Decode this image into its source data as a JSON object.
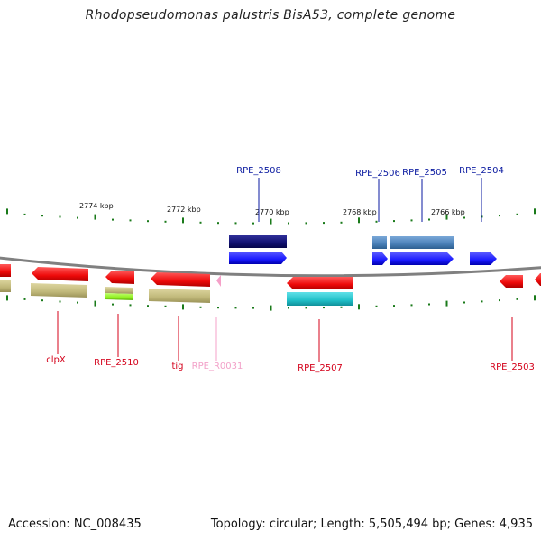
{
  "title": "Rhodopseudomonas palustris BisA53, complete genome",
  "footer": {
    "accession": "Accession: NC_008435",
    "summary": "Topology: circular; Length: 5,505,494 bp; Genes: 4,935"
  },
  "ticks": [
    {
      "label": "2774 kbp"
    },
    {
      "label": "2772 kbp"
    },
    {
      "label": "2770 kbp"
    },
    {
      "label": "2768 kbp"
    },
    {
      "label": "2766 kbp"
    }
  ],
  "gene_labels": [
    {
      "text": "RPE_2508",
      "color": "#0a1aa0"
    },
    {
      "text": "RPE_2506",
      "color": "#0a1aa0"
    },
    {
      "text": "RPE_2505",
      "color": "#0a1aa0"
    },
    {
      "text": "RPE_2504",
      "color": "#0a1aa0"
    },
    {
      "text": "clpX",
      "color": "#d4001a"
    },
    {
      "text": "RPE_2510",
      "color": "#d4001a"
    },
    {
      "text": "tig",
      "color": "#d4001a"
    },
    {
      "text": "RPE_R0031",
      "color": "#f2a0c8"
    },
    {
      "text": "RPE_2507",
      "color": "#d4001a"
    },
    {
      "text": "RPE_2503",
      "color": "#d4001a"
    }
  ],
  "colors": {
    "backbone": "#808080",
    "tick": "#1a7a1a",
    "forward_cds": "#1a1aff",
    "reverse_cds": "#ee0a0a",
    "domain_khaki": "#c0b87a",
    "domain_navy": "#101070",
    "domain_steel": "#4a80b8",
    "domain_teal": "#20c0c8",
    "domain_lime": "#90f020",
    "rna": "#f5a0c8"
  }
}
